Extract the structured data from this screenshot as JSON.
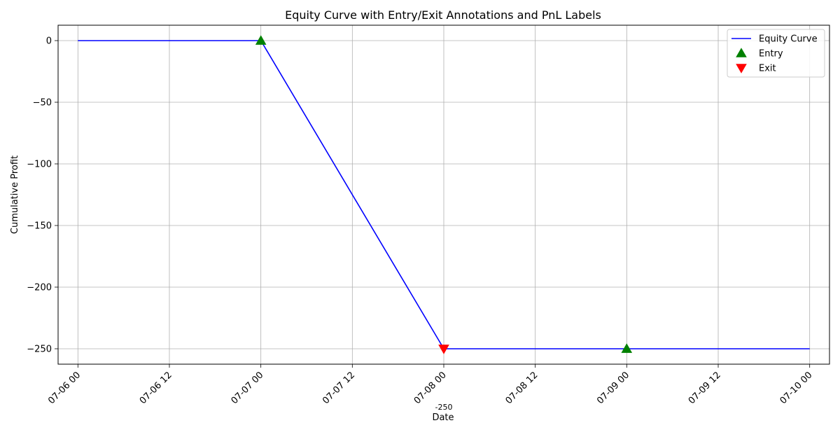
{
  "chart_data": {
    "type": "line",
    "title": "Equity Curve with Entry/Exit Annotations and PnL Labels",
    "xlabel": "Date",
    "ylabel": "Cumulative Profit",
    "x_range": [
      "07-05 21:24",
      "07-10 02:36"
    ],
    "ylim": [
      -262.5,
      12.5
    ],
    "x_ticks": [
      "07-06 00",
      "07-06 12",
      "07-07 00",
      "07-07 12",
      "07-08 00",
      "07-08 12",
      "07-09 00",
      "07-09 12",
      "07-10 00"
    ],
    "y_ticks": [
      0,
      -50,
      -100,
      -150,
      -200,
      -250
    ],
    "y_tick_labels": [
      "0",
      "−50",
      "−100",
      "−150",
      "−200",
      "−250"
    ],
    "grid": true,
    "legend_position": "top-right",
    "series": [
      {
        "name": "Equity Curve",
        "color": "#0000ff",
        "x": [
          "07-06 00",
          "07-07 00",
          "07-08 00",
          "07-09 00",
          "07-10 00"
        ],
        "y": [
          0,
          0,
          -250,
          -250,
          -250
        ]
      }
    ],
    "markers": [
      {
        "name": "Entry",
        "shape": "triangle-up",
        "color": "#008000",
        "points": [
          {
            "x": "07-07 00",
            "y": 0
          },
          {
            "x": "07-09 00",
            "y": -250
          }
        ]
      },
      {
        "name": "Exit",
        "shape": "triangle-down",
        "color": "#ff0000",
        "points": [
          {
            "x": "07-08 00",
            "y": -250
          }
        ]
      }
    ],
    "annotations": [
      {
        "text": "-250",
        "x": "07-08 00"
      }
    ]
  }
}
